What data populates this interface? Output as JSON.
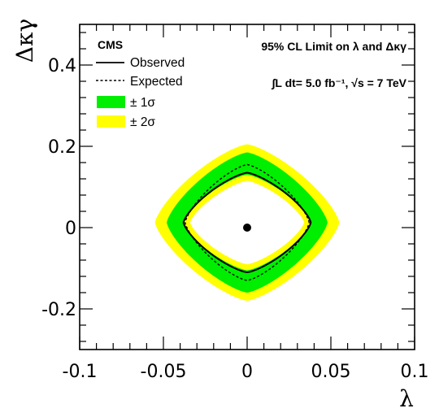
{
  "chart_data": {
    "type": "contour",
    "x_axis": {
      "label": "λ",
      "range": [
        -0.1,
        0.1
      ],
      "tick_values": [
        -0.1,
        -0.05,
        0,
        0.05,
        0.1
      ],
      "tick_labels": [
        "-0.1",
        "-0.05",
        "0",
        "0.05",
        "0.1"
      ]
    },
    "y_axis": {
      "label": "Δκγ",
      "range": [
        -0.3,
        0.5
      ],
      "tick_values": [
        -0.2,
        0,
        0.2,
        0.4
      ],
      "tick_labels": [
        "-0.2",
        "0",
        "0.2",
        "0.4"
      ]
    },
    "grid": false,
    "experiment_label": "CMS",
    "header_text": "95% CL Limit on λ and Δκγ",
    "luminosity_text": "∫L dt= 5.0 fb⁻¹, √s = 7 TeV",
    "legend": {
      "placement": "top-left",
      "entries": [
        {
          "label": "Observed",
          "style": "solid-line",
          "color": "#000000"
        },
        {
          "label": "Expected",
          "style": "dashed-line",
          "color": "#000000"
        },
        {
          "label": "± 1σ",
          "style": "fill",
          "color": "#00ee00"
        },
        {
          "label": "± 2σ",
          "style": "fill",
          "color": "#ffff00"
        }
      ]
    },
    "central_point": {
      "lambda": 0.0,
      "dkappa_gamma": 0.0
    },
    "contours": {
      "shape_exponent": 1.35,
      "observed": {
        "lambda_min": -0.038,
        "lambda_max": 0.038,
        "dkappa_min": -0.11,
        "dkappa_max": 0.135
      },
      "expected": {
        "lambda_min": -0.037,
        "lambda_max": 0.037,
        "dkappa_min": -0.13,
        "dkappa_max": 0.155
      },
      "one_sigma": {
        "outer": {
          "lambda_min": -0.048,
          "lambda_max": 0.048,
          "dkappa_min": -0.16,
          "dkappa_max": 0.185
        },
        "inner": {
          "lambda_min": -0.038,
          "lambda_max": 0.038,
          "dkappa_min": -0.105,
          "dkappa_max": 0.13
        }
      },
      "two_sigma": {
        "outer": {
          "lambda_min": -0.055,
          "lambda_max": 0.055,
          "dkappa_min": -0.18,
          "dkappa_max": 0.205
        },
        "inner": {
          "lambda_min": -0.034,
          "lambda_max": 0.034,
          "dkappa_min": -0.09,
          "dkappa_max": 0.115
        }
      }
    }
  },
  "colors": {
    "two_sigma": "#ffff00",
    "one_sigma": "#00ee00",
    "line": "#000000",
    "background": "#ffffff"
  }
}
